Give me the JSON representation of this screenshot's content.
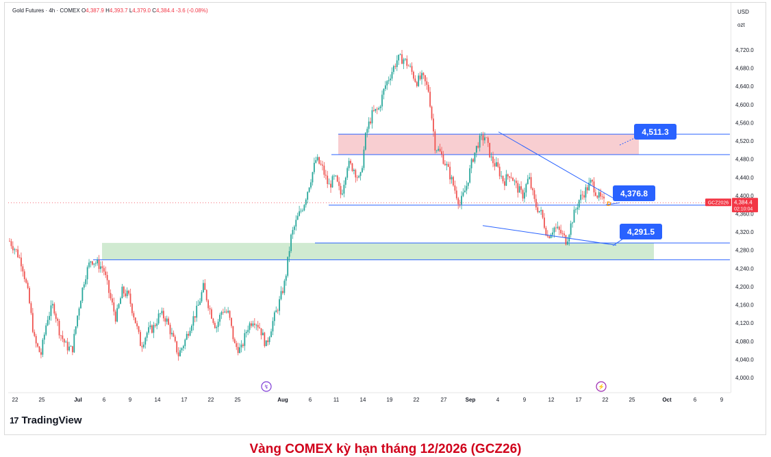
{
  "header": {
    "symbol": "Gold Futures · 4h · COMEX",
    "o_label": "O",
    "o_value": "4,387.9",
    "h_label": "H",
    "h_value": "4,393.7",
    "l_label": "L",
    "l_value": "4,379.0",
    "c_label": "C",
    "c_value": "4,384.4",
    "change": "-3.6 (-0.08%)"
  },
  "currency": "USD",
  "unit": "ozt",
  "brand": "TradingView",
  "caption": "Vàng COMEX kỳ hạn tháng 12/2026 (GCZ26)",
  "colors": {
    "up": "#26a69a",
    "down": "#ef5350",
    "resistance_zone": "#f7c5c9",
    "support_zone": "#c8e6c9",
    "level_line": "#2962ff",
    "callout": "#2962ff",
    "price_tag": "#f23645"
  },
  "chart_data": {
    "type": "candlestick",
    "timeframe": "4h",
    "ylim": [
      3970,
      4770
    ],
    "y_ticks": [
      4000,
      4040,
      4080,
      4120,
      4160,
      4200,
      4240,
      4280,
      4320,
      4360,
      4400,
      4440,
      4480,
      4520,
      4560,
      4600,
      4640,
      4680,
      4720
    ],
    "y_tick_labels": [
      "4,000.0",
      "4,040.0",
      "4,080.0",
      "4,120.0",
      "4,160.0",
      "4,200.0",
      "4,240.0",
      "4,280.0",
      "4,320.0",
      "4,360.0",
      "4,400.0",
      "4,440.0",
      "4,480.0",
      "4,520.0",
      "4,560.0",
      "4,600.0",
      "4,640.0",
      "4,680.0",
      "4,720.0"
    ],
    "x_tick_labels": [
      "22",
      "25",
      "Jul",
      "6",
      "9",
      "14",
      "17",
      "22",
      "25",
      "Aug",
      "6",
      "11",
      "14",
      "19",
      "22",
      "27",
      "Sep",
      "4",
      "9",
      "12",
      "17",
      "22",
      "25",
      "Oct",
      "6",
      "9"
    ],
    "close_path": [
      4300,
      4280,
      4250,
      4180,
      4080,
      4050,
      4130,
      4160,
      4100,
      4070,
      4060,
      4150,
      4220,
      4260,
      4250,
      4240,
      4180,
      4130,
      4190,
      4180,
      4130,
      4070,
      4100,
      4110,
      4140,
      4130,
      4090,
      4050,
      4080,
      4120,
      4150,
      4200,
      4150,
      4110,
      4150,
      4140,
      4070,
      4060,
      4110,
      4130,
      4110,
      4070,
      4120,
      4160,
      4210,
      4310,
      4350,
      4380,
      4430,
      4480,
      4460,
      4420,
      4440,
      4400,
      4470,
      4460,
      4430,
      4540,
      4580,
      4590,
      4640,
      4670,
      4700,
      4700,
      4680,
      4650,
      4660,
      4630,
      4510,
      4490,
      4460,
      4420,
      4380,
      4420,
      4480,
      4520,
      4530,
      4480,
      4460,
      4430,
      4450,
      4420,
      4400,
      4440,
      4380,
      4360,
      4310,
      4330,
      4320,
      4300,
      4350,
      4390,
      4410,
      4430,
      4400,
      4384
    ],
    "last_price": "4,384.4",
    "last_ticker": "GCZ2026",
    "countdown": "02:10:04",
    "annotations": [
      {
        "type": "zone",
        "name": "resistance",
        "y": [
          4490,
          4535
        ],
        "color": "red"
      },
      {
        "type": "zone",
        "name": "support",
        "y": [
          4259,
          4296
        ],
        "color": "green"
      },
      {
        "type": "hline",
        "y": 4535
      },
      {
        "type": "hline",
        "y": 4490
      },
      {
        "type": "hline",
        "y": 4379
      },
      {
        "type": "hline",
        "y": 4296
      },
      {
        "type": "hline",
        "y": 4259
      },
      {
        "type": "callout",
        "label": "4,511.3",
        "value": 4511.3
      },
      {
        "type": "callout",
        "label": "4,376.8",
        "value": 4376.8
      },
      {
        "type": "callout",
        "label": "4,291.5",
        "value": 4291.5
      }
    ],
    "event_markers": [
      "D"
    ]
  }
}
